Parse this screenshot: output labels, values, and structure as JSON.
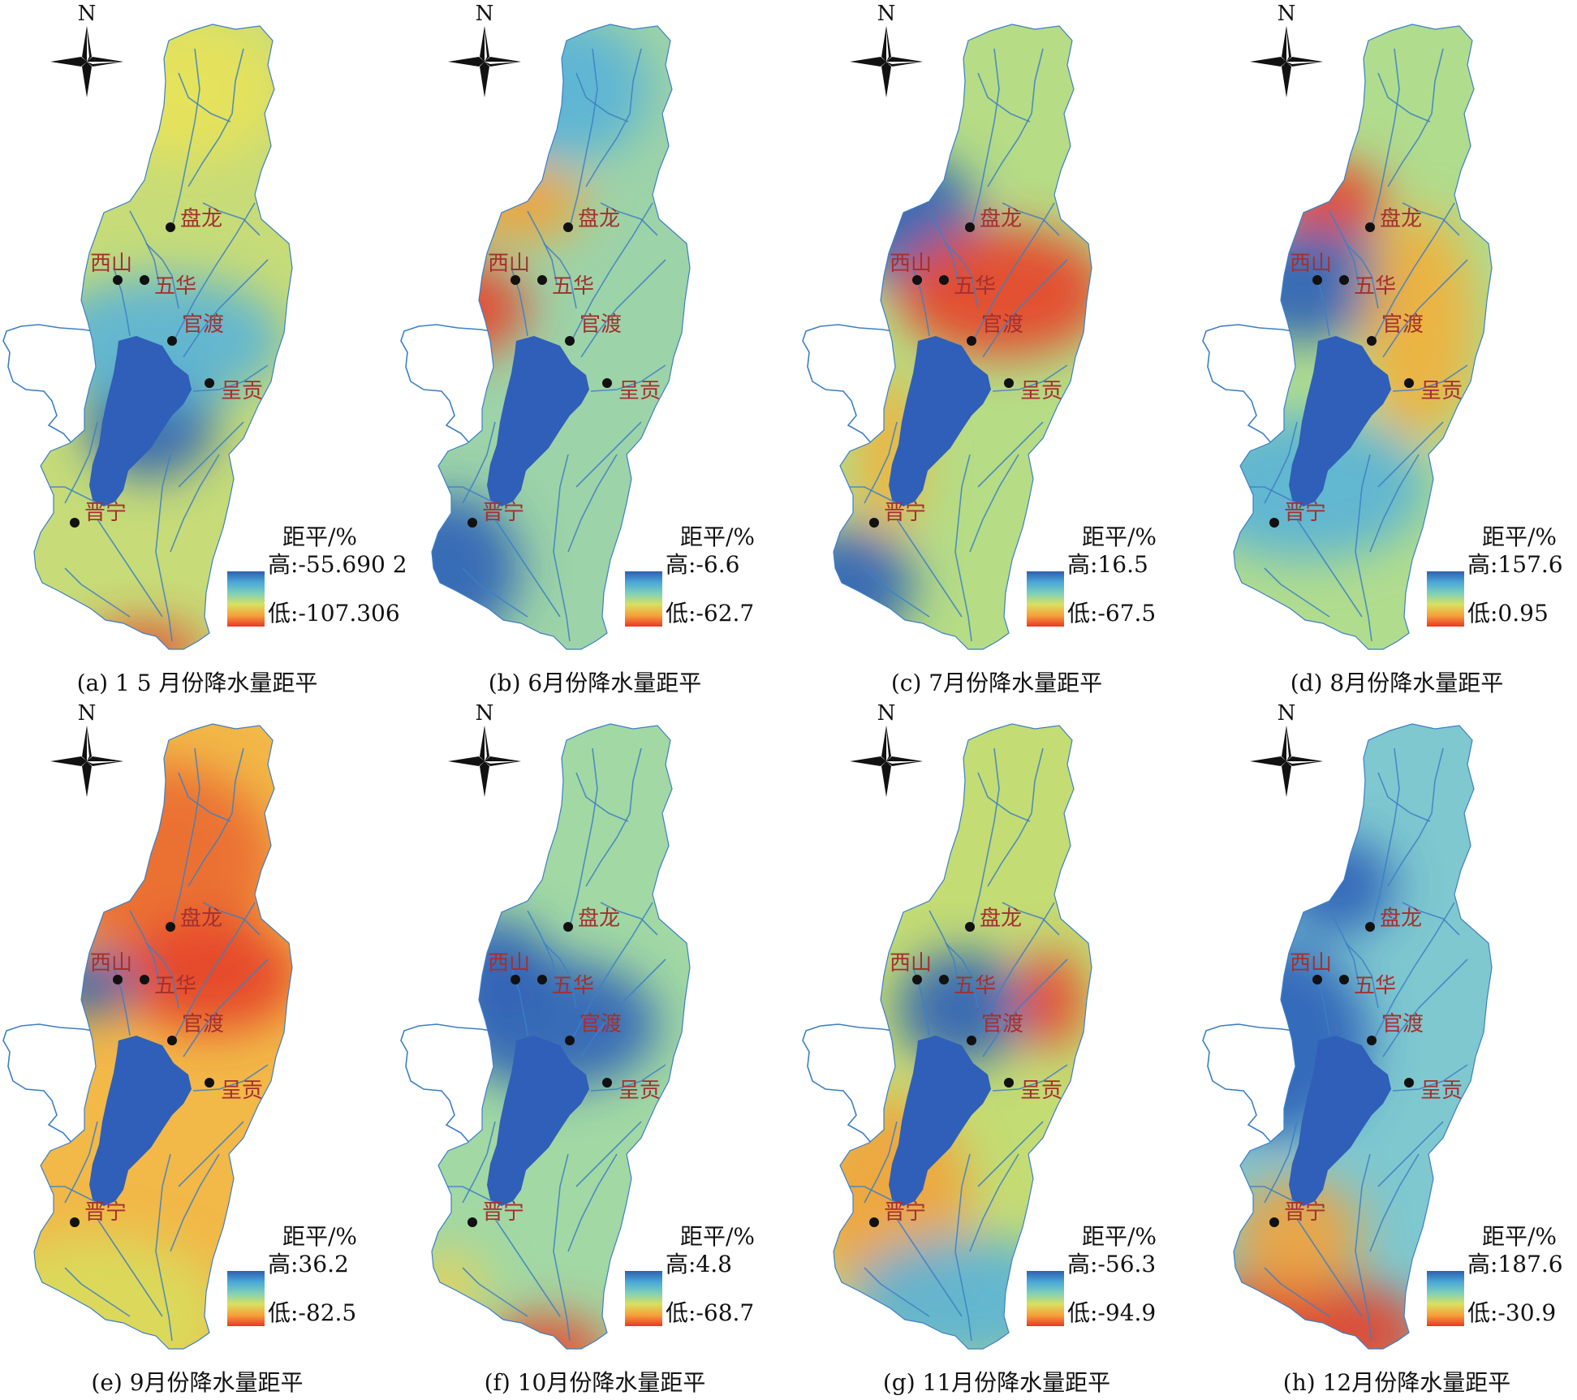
{
  "north_letter": "N",
  "legend_title": "距平/%",
  "stations": [
    "盘龙",
    "西山",
    "五华",
    "官渡",
    "呈贡",
    "晋宁"
  ],
  "colors": {
    "lake": "#2f5fb8",
    "river": "#3d7fc4",
    "outer_river": "#3d7fc4",
    "station_label": "#a4302f",
    "station_dot": "#111111",
    "ramp": [
      "#2f5fb0",
      "#4aa8d8",
      "#7fd0b8",
      "#d8e060",
      "#f7a13a",
      "#e8372a"
    ]
  },
  "panels": [
    {
      "caption": "(a) 1 5  月份降水量距平",
      "high": "高:-55.690 2",
      "low": "低:-107.306",
      "base_color": "#c7dc78",
      "blobs": [
        {
          "color": "#e8e25a"
        },
        {
          "color": "#2f5fb8"
        },
        {
          "color": "#e33a2a"
        },
        {
          "color": "#5ab2d8"
        }
      ]
    },
    {
      "caption": "(b) 6月份降水量距平",
      "high": "高:-6.6",
      "low": "低:-62.7",
      "base_color": "#9dd3a8",
      "blobs": [
        {
          "color": "#5ab2d8"
        },
        {
          "color": "#e8402a"
        },
        {
          "color": "#f2a23a"
        },
        {
          "color": "#2f5fb8"
        }
      ]
    },
    {
      "caption": "(c) 7月份降水量距平",
      "high": "高:16.5",
      "low": "低:-67.5",
      "base_color": "#b6dc86",
      "blobs": [
        {
          "color": "#2f5fb8"
        },
        {
          "color": "#e8402a"
        },
        {
          "color": "#f2b03a"
        },
        {
          "color": "#2f5fb8"
        }
      ]
    },
    {
      "caption": "(d) 8月份降水量距平",
      "high": "高:157.6",
      "low": "低:0.95",
      "base_color": "#b0dc8e",
      "blobs": [
        {
          "color": "#e8402a"
        },
        {
          "color": "#2f5fb8"
        },
        {
          "color": "#f2b03a"
        },
        {
          "color": "#5ab2d8"
        }
      ]
    },
    {
      "caption": "(e) 9月份降水量距平",
      "high": "高:36.2",
      "low": "低:-82.5",
      "base_color": "#f2b848",
      "blobs": [
        {
          "color": "#ea6a30"
        },
        {
          "color": "#e4402a"
        },
        {
          "color": "#2f5fb8"
        },
        {
          "color": "#d8dc5c"
        }
      ]
    },
    {
      "caption": "(f) 10月份降水量距平",
      "high": "高:4.8",
      "low": "低:-68.7",
      "base_color": "#a2d8a4",
      "blobs": [
        {
          "color": "#2f5fb8"
        },
        {
          "color": "#2f5fb8"
        },
        {
          "color": "#e8402a"
        },
        {
          "color": "#e8d258"
        }
      ]
    },
    {
      "caption": "(g) 11月份降水量距平",
      "high": "高:-56.3",
      "low": "低:-94.9",
      "base_color": "#c4dc74",
      "blobs": [
        {
          "color": "#2f5fb8"
        },
        {
          "color": "#e8402a"
        },
        {
          "color": "#f2a23a"
        },
        {
          "color": "#5ab2d8"
        }
      ]
    },
    {
      "caption": "(h) 12月份降水量距平",
      "high": "高:187.6",
      "low": "低:-30.9",
      "base_color": "#7fc8d0",
      "blobs": [
        {
          "color": "#2f5fb8"
        },
        {
          "color": "#e4402a"
        },
        {
          "color": "#f2a23a"
        },
        {
          "color": "#2f5fb8"
        }
      ]
    }
  ]
}
